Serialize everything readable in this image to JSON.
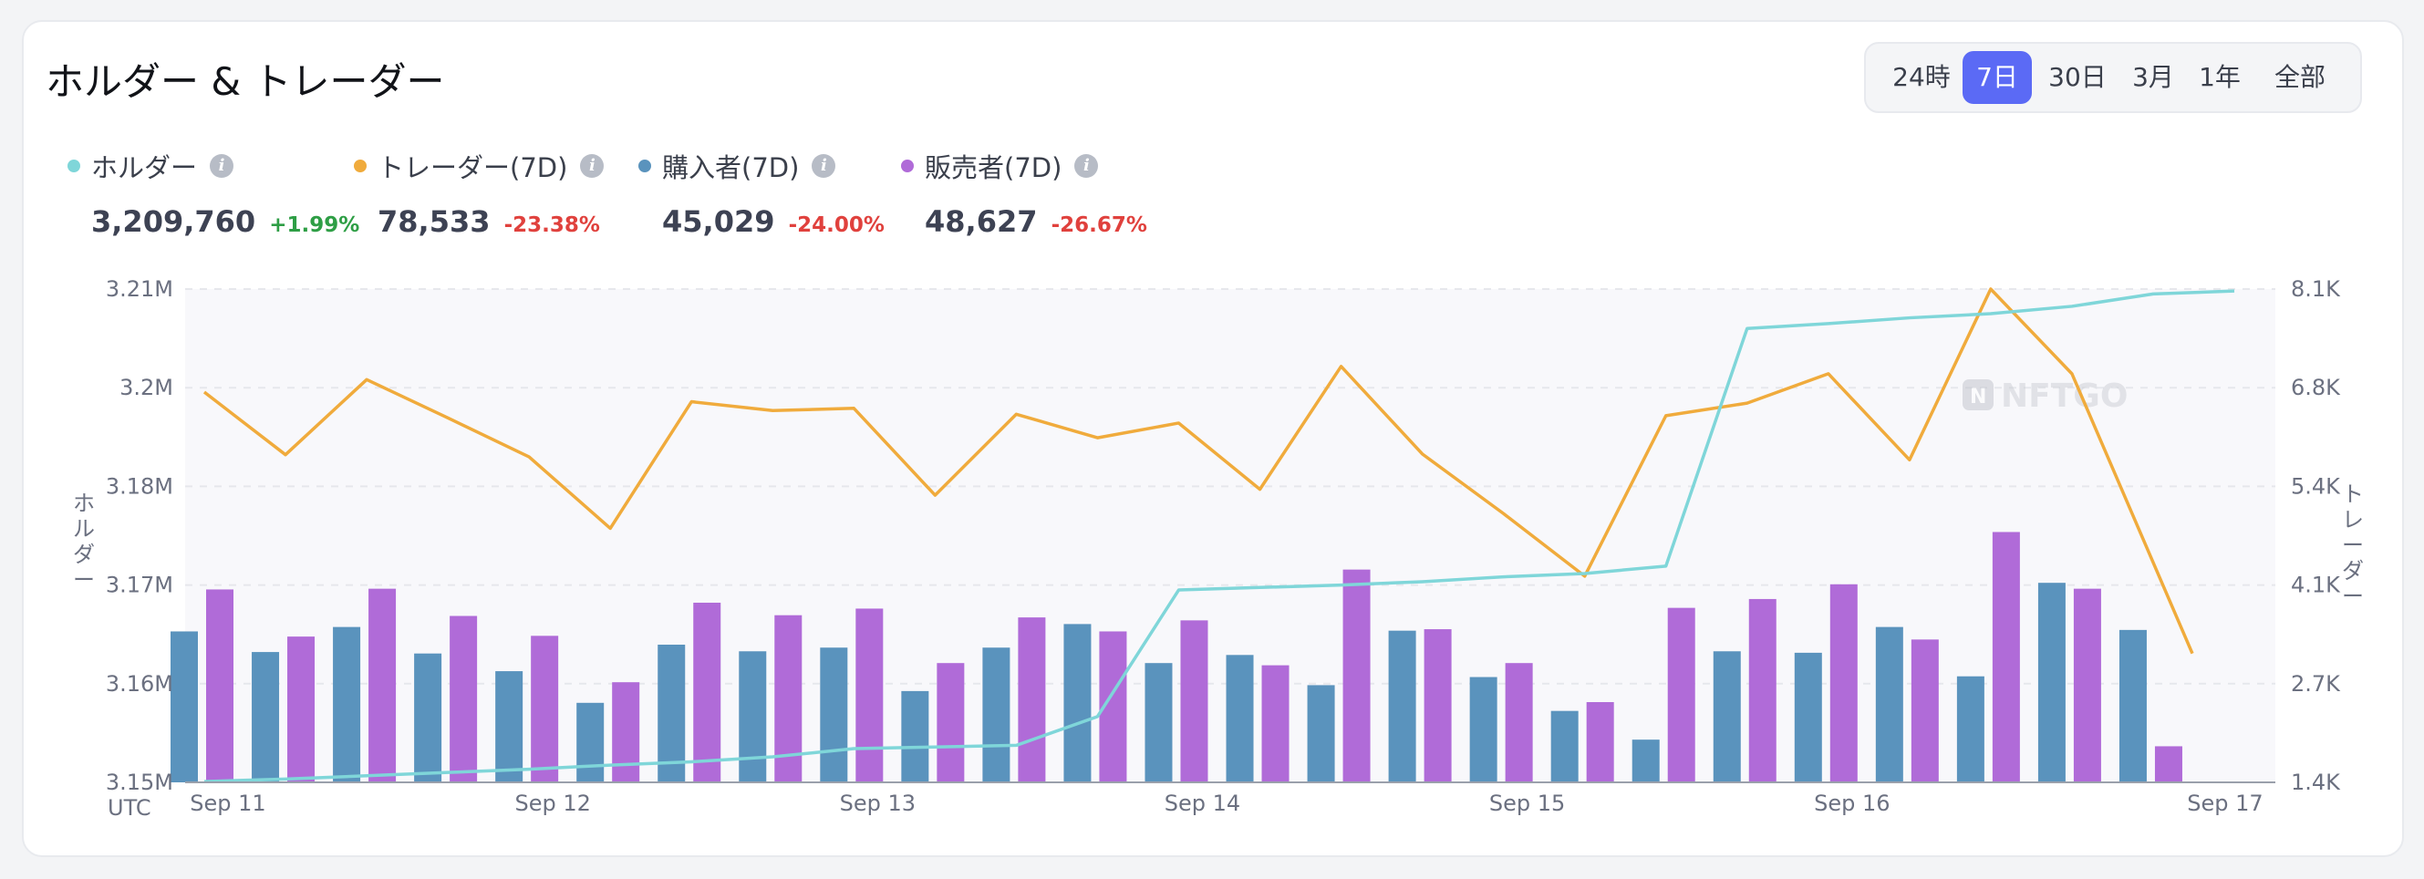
{
  "header": {
    "title": "ホルダー & トレーダー"
  },
  "time_ranges": {
    "options": [
      "24時",
      "7日",
      "30日",
      "3月",
      "1年",
      "全部"
    ],
    "selected": "7日"
  },
  "legend": [
    {
      "label": "ホルダー",
      "value": "3,209,760",
      "change": "+1.99%",
      "color": "#7fd6d9",
      "change_color": "#2e9e45"
    },
    {
      "label": "トレーダー(7D)",
      "value": "78,533",
      "change": "-23.38%",
      "color": "#f0ab3c",
      "change_color": "#e0413d"
    },
    {
      "label": "購入者(7D)",
      "value": "45,029",
      "change": "-24.00%",
      "color": "#5a93bd",
      "change_color": "#e0413d"
    },
    {
      "label": "販売者(7D)",
      "value": "48,627",
      "change": "-26.67%",
      "color": "#b06bd8",
      "change_color": "#e0413d"
    }
  ],
  "watermark": "NFTGO",
  "chart_data": {
    "type": "bar+line",
    "left_axis": {
      "label": "ホルダー",
      "ticks": [
        "3.21M",
        "3.2M",
        "3.18M",
        "3.17M",
        "3.16M",
        "3.15M"
      ],
      "ylim": [
        3150000,
        3210000
      ]
    },
    "right_axis": {
      "label": "トレーダー",
      "ticks": [
        "8.1K",
        "6.8K",
        "5.4K",
        "4.1K",
        "2.7K",
        "1.4K"
      ],
      "ylim": [
        1400,
        8100
      ]
    },
    "x_axis": {
      "timezone_label": "UTC",
      "ticks": [
        "Sep 11",
        "Sep 12",
        "Sep 13",
        "Sep 14",
        "Sep 15",
        "Sep 16",
        "Sep 17"
      ]
    },
    "grid": true,
    "series": [
      {
        "name": "ホルダー",
        "kind": "line",
        "axis": "left",
        "x": [
          0,
          1,
          2,
          3,
          4,
          5,
          6,
          7,
          8,
          9,
          10,
          11,
          12,
          13,
          14,
          15,
          16,
          17,
          18,
          19,
          20,
          21,
          22,
          23,
          24,
          25
        ],
        "values": [
          3150100,
          3150400,
          3150800,
          3151200,
          3151600,
          3152100,
          3152500,
          3153100,
          3154100,
          3154300,
          3154500,
          3158000,
          3173400,
          3173700,
          3174000,
          3174400,
          3175000,
          3175400,
          3176300,
          3205200,
          3205800,
          3206500,
          3207000,
          3207900,
          3209400,
          3209760
        ]
      },
      {
        "name": "トレーダー(7D)",
        "kind": "line",
        "axis": "right",
        "x": [
          0,
          1,
          2,
          3,
          4,
          5,
          6,
          7,
          8,
          9,
          10,
          11,
          12,
          13,
          14,
          15,
          16,
          17,
          18,
          19,
          20,
          21,
          22,
          23,
          24,
          25
        ],
        "values": [
          6700,
          5850,
          6870,
          6350,
          5820,
          4850,
          6570,
          6450,
          6480,
          5300,
          6400,
          6080,
          6280,
          5380,
          7050,
          5860,
          5050,
          4200,
          6380,
          6550,
          6950,
          5780,
          8100,
          6950,
          3150,
          3150
        ]
      },
      {
        "name": "購入者(7D)",
        "kind": "bar",
        "axis": "right",
        "values": [
          3450,
          3170,
          3510,
          3150,
          2910,
          2480,
          3270,
          3180,
          3230,
          2640,
          3230,
          3550,
          3020,
          3130,
          2720,
          3460,
          2830,
          2370,
          1980,
          3180,
          3160,
          3510,
          2840,
          4110,
          3470
        ]
      },
      {
        "name": "販売者(7D)",
        "kind": "bar",
        "axis": "right",
        "values": [
          4020,
          3380,
          4030,
          3660,
          3390,
          2760,
          3840,
          3670,
          3760,
          3020,
          3640,
          3450,
          3600,
          2990,
          4290,
          3480,
          3020,
          2490,
          3770,
          3890,
          4090,
          3340,
          4800,
          4030,
          1890
        ]
      }
    ]
  }
}
